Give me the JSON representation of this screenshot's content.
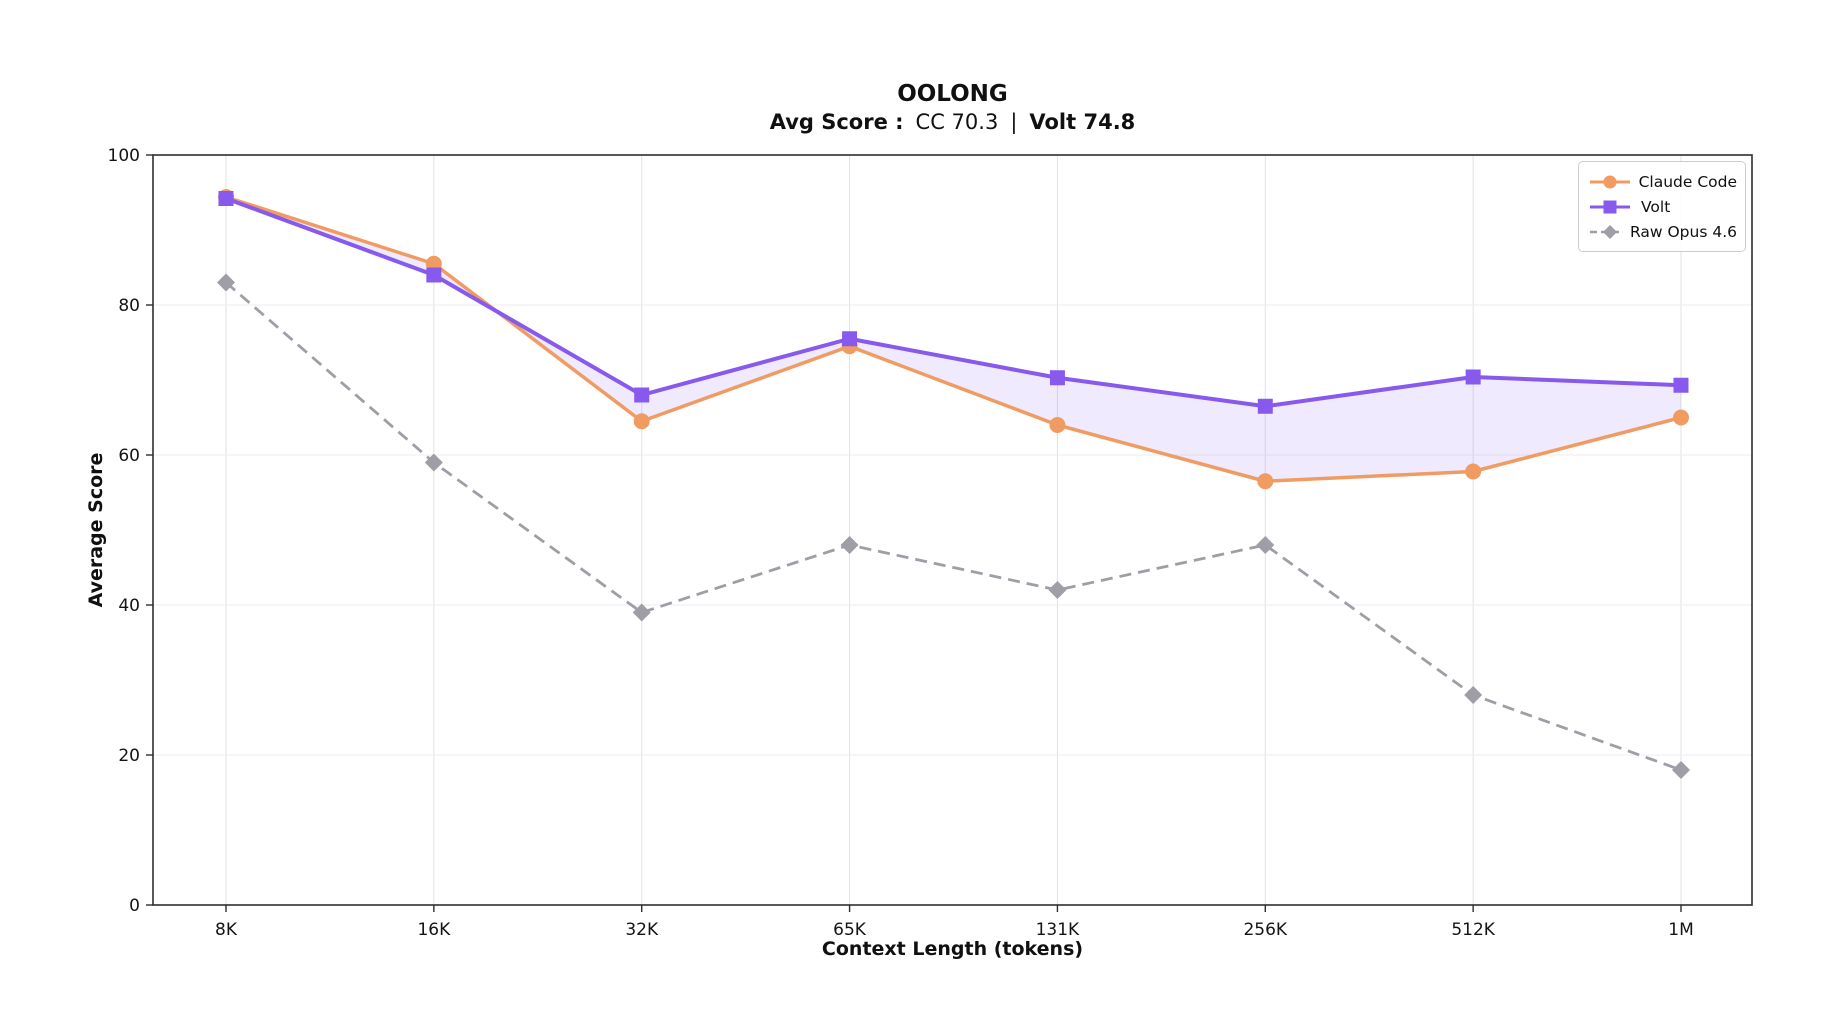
{
  "chart_data": {
    "type": "line",
    "title": "OOLONG",
    "subtitle": {
      "bold1": "Avg Score :",
      "normal1": "CC 70.3",
      "sep": "|",
      "bold2": "Volt 74.8"
    },
    "xlabel": "Context Length (tokens)",
    "ylabel": "Average Score",
    "categories": [
      "8K",
      "16K",
      "32K",
      "65K",
      "131K",
      "256K",
      "512K",
      "1M"
    ],
    "ylim": [
      0,
      100
    ],
    "yticks": [
      0,
      20,
      40,
      60,
      80,
      100
    ],
    "ytick_labels": [
      "0",
      "20",
      "40",
      "60",
      "80",
      "100"
    ],
    "grid": true,
    "legend_position": "top-right",
    "series": [
      {
        "name": "Claude Code",
        "color": "#F09B62",
        "marker": "circle",
        "line_style": "solid",
        "avg": 70.3,
        "values": [
          94.4,
          85.5,
          64.5,
          74.5,
          64.0,
          56.5,
          57.8,
          65.0
        ]
      },
      {
        "name": "Volt",
        "color": "#8759EC",
        "marker": "square",
        "line_style": "solid",
        "avg": 74.8,
        "values": [
          94.2,
          84.0,
          68.0,
          75.5,
          70.3,
          66.5,
          70.4,
          69.3
        ]
      },
      {
        "name": "Raw Opus 4.6",
        "color": "#9E9EA6",
        "marker": "diamond",
        "line_style": "dashed",
        "values": [
          83.0,
          59.0,
          39.0,
          48.0,
          42.0,
          48.0,
          28.0,
          18.0
        ]
      }
    ],
    "fill_between": {
      "between": [
        "Claude Code",
        "Volt"
      ],
      "color": "#8759EC",
      "opacity": 0.13
    }
  }
}
